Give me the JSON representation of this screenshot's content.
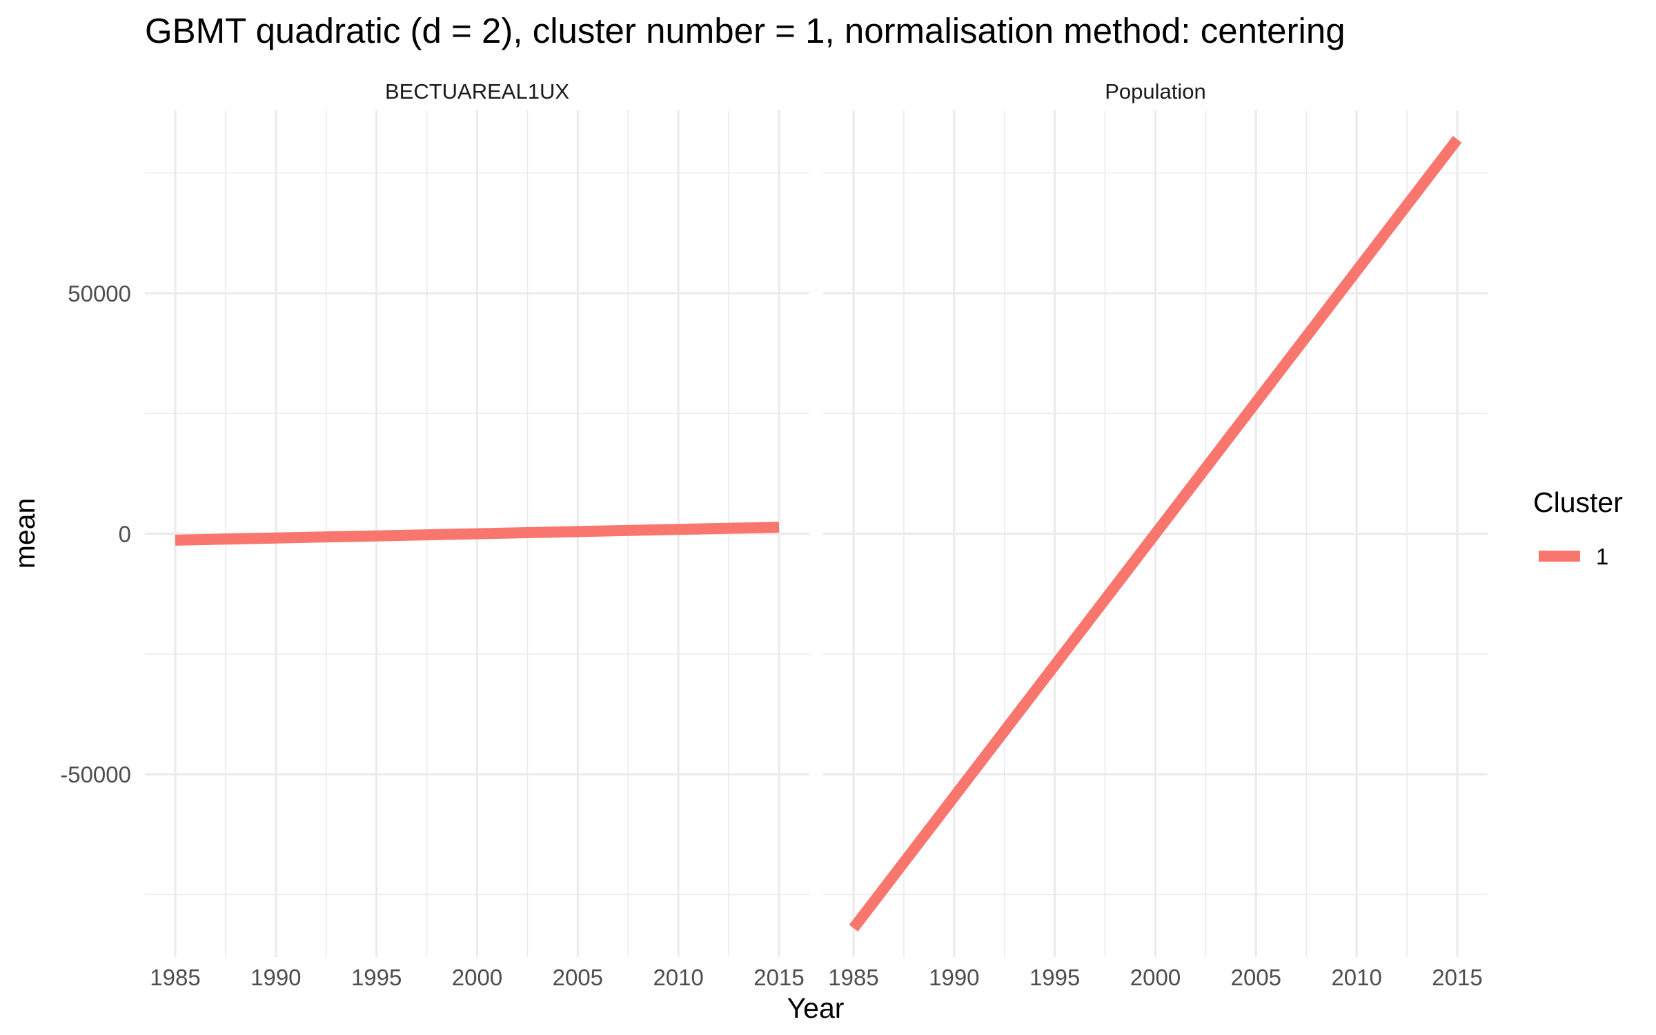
{
  "chart_data": {
    "type": "line",
    "title": "GBMT quadratic (d = 2), cluster number = 1, normalisation method: centering",
    "xlabel": "Year",
    "ylabel": "mean",
    "xlim": [
      1985,
      2015
    ],
    "ylim": [
      -88000,
      88000
    ],
    "x_ticks": [
      "1985",
      "1990",
      "1995",
      "2000",
      "2005",
      "2010",
      "2015"
    ],
    "y_ticks": [
      "-50000",
      "0",
      "50000"
    ],
    "grid": true,
    "legend": {
      "title": "Cluster",
      "position": "right",
      "entries": [
        "1"
      ]
    },
    "colors": {
      "series_1": "#F8766D",
      "grid": "#EBEBEB"
    },
    "panels": [
      {
        "label": "BECTUAREAL1UX",
        "series": [
          {
            "name": "1",
            "x": [
              1985,
              2015
            ],
            "y": [
              -1350,
              1350
            ]
          }
        ]
      },
      {
        "label": "Population",
        "series": [
          {
            "name": "1",
            "x": [
              1985,
              2015
            ],
            "y": [
              -82000,
              82000
            ]
          }
        ]
      }
    ]
  }
}
